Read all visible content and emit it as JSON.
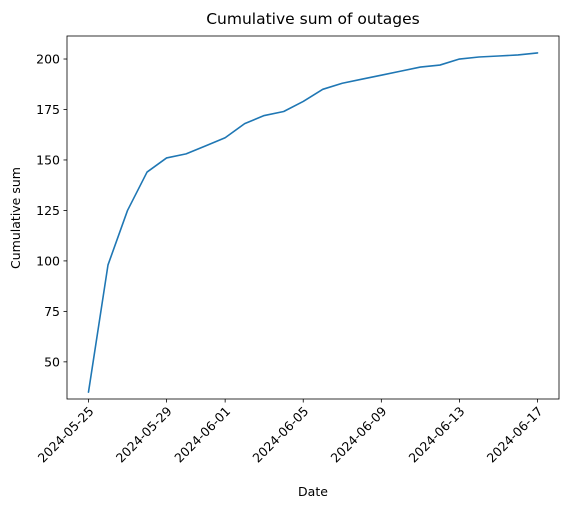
{
  "chart_data": {
    "type": "line",
    "title": "Cumulative sum of outages",
    "xlabel": "Date",
    "ylabel": "Cumulative sum",
    "grid": false,
    "x": [
      "2024-05-25",
      "2024-05-26",
      "2024-05-27",
      "2024-05-28",
      "2024-05-29",
      "2024-05-30",
      "2024-05-31",
      "2024-06-01",
      "2024-06-02",
      "2024-06-03",
      "2024-06-04",
      "2024-06-05",
      "2024-06-06",
      "2024-06-07",
      "2024-06-08",
      "2024-06-09",
      "2024-06-10",
      "2024-06-11",
      "2024-06-12",
      "2024-06-13",
      "2024-06-14",
      "2024-06-15",
      "2024-06-16",
      "2024-06-17"
    ],
    "series": [
      {
        "values": [
          35,
          98,
          125,
          144,
          151,
          153,
          157,
          161,
          168,
          172,
          174,
          179,
          185,
          188,
          190,
          192,
          194,
          196,
          197,
          200,
          201,
          201.5,
          202,
          203
        ],
        "color": "#1f77b4"
      }
    ],
    "ylim": [
      31.6,
      211.4
    ],
    "xlim": [
      "2024-05-23 21:36",
      "2024-06-18 02:24"
    ],
    "x_ticks": [
      "2024-05-25",
      "2024-05-29",
      "2024-06-01",
      "2024-06-05",
      "2024-06-09",
      "2024-06-13",
      "2024-06-17"
    ],
    "y_ticks": [
      50,
      75,
      100,
      125,
      150,
      175,
      200
    ]
  }
}
